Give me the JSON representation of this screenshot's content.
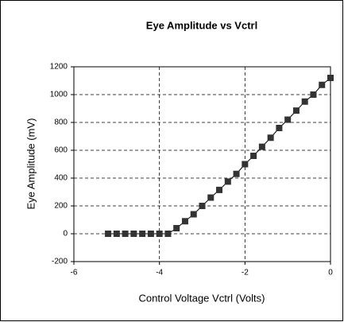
{
  "chart_data": {
    "type": "line",
    "title": "Eye Amplitude vs Vctrl",
    "x_label": "Control Voltage Vctrl (Volts)",
    "y_label": "Eye Amplitude (mV)",
    "x": [
      -5.2,
      -5.0,
      -4.8,
      -4.6,
      -4.4,
      -4.2,
      -4.0,
      -3.8,
      -3.6,
      -3.4,
      -3.2,
      -3.0,
      -2.8,
      -2.6,
      -2.4,
      -2.2,
      -2.0,
      -1.8,
      -1.6,
      -1.4,
      -1.2,
      -1.0,
      -0.8,
      -0.6,
      -0.4,
      -0.2,
      0
    ],
    "series": [
      {
        "name": "Eye Amplitude",
        "color": "#333333",
        "values": [
          0,
          0,
          0,
          0,
          0,
          0,
          0,
          0,
          40,
          90,
          140,
          200,
          260,
          315,
          375,
          430,
          500,
          560,
          625,
          690,
          760,
          820,
          885,
          950,
          1000,
          1070,
          1120
        ]
      }
    ],
    "xlim": [
      -6,
      0
    ],
    "xticks": [
      -6,
      -4,
      -2,
      0
    ],
    "ylim": [
      -200,
      1200
    ],
    "yticks": [
      -200,
      0,
      200,
      400,
      600,
      800,
      1000,
      1200
    ],
    "grid": true
  }
}
